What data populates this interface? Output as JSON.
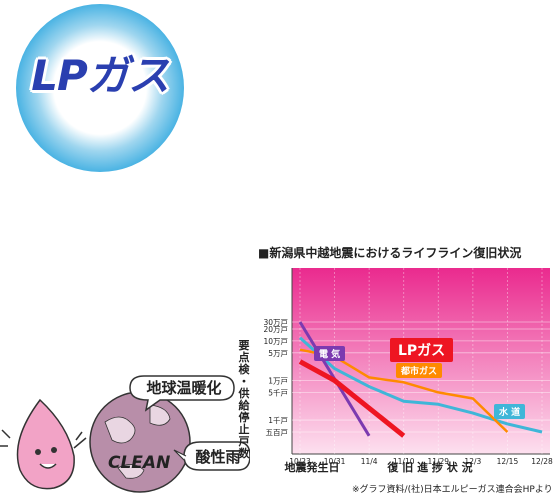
{
  "logo": {
    "text": "LPガス"
  },
  "illustration": {
    "bubble_top": "地球温暖化",
    "bubble_bottom": "酸性雨",
    "globe_text": "CLEAN"
  },
  "colors": {
    "chart_bg_top": "#ea2a8e",
    "chart_bg_bottom": "#fde0ef",
    "lp_gas": "#ee1522",
    "electricity": "#7c3ab0",
    "city_gas": "#ff8a00",
    "water": "#3fb6d8"
  },
  "chart_data": {
    "type": "line",
    "title": "■新潟県中越地震におけるライフライン復旧状況",
    "ylabel": "要点検・供給停止戸数",
    "xlabel_left": "地震発生日",
    "xlabel_right": "復 旧 進 捗 状 況",
    "y_scale": "log",
    "y_ticks": [
      "30万戸",
      "20万戸",
      "10万戸",
      "5万戸",
      "1万戸",
      "5千戸",
      "1千戸",
      "五百戸"
    ],
    "y_tick_values": [
      300000,
      200000,
      100000,
      50000,
      10000,
      5000,
      1000,
      500
    ],
    "categories": [
      "10/23",
      "10/31",
      "11/4",
      "11/10",
      "11/29",
      "12/3",
      "12/15",
      "12/28"
    ],
    "grid": true,
    "series": [
      {
        "name": "電 気",
        "color_key": "electricity",
        "points": [
          [
            "10/23",
            300000
          ],
          [
            "11/4",
            400
          ]
        ]
      },
      {
        "name": "LPガス",
        "color_key": "lp_gas",
        "points": [
          [
            "10/23",
            30000
          ],
          [
            "10/31",
            10000
          ],
          [
            "11/10",
            400
          ]
        ]
      },
      {
        "name": "都市ガス",
        "color_key": "city_gas",
        "points": [
          [
            "10/23",
            60000
          ],
          [
            "10/31",
            40000
          ],
          [
            "11/4",
            12000
          ],
          [
            "11/10",
            9000
          ],
          [
            "11/29",
            5000
          ],
          [
            "12/3",
            3500
          ],
          [
            "12/15",
            500
          ]
        ]
      },
      {
        "name": "水 道",
        "color_key": "water",
        "points": [
          [
            "10/23",
            120000
          ],
          [
            "10/31",
            20000
          ],
          [
            "11/4",
            7000
          ],
          [
            "11/10",
            3000
          ],
          [
            "11/29",
            2500
          ],
          [
            "12/3",
            1500
          ],
          [
            "12/15",
            800
          ],
          [
            "12/28",
            500
          ]
        ]
      }
    ]
  },
  "source_note": "※グラフ資料/(社)日本エルピーガス連合会HPより"
}
